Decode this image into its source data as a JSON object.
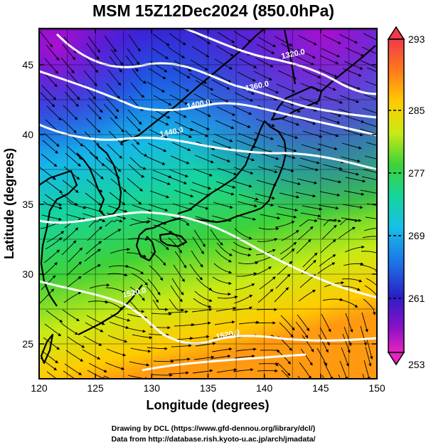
{
  "title": "MSM 15Z12Dec2024 (850.0hPa)",
  "x_axis": {
    "label": "Longitude (degrees)",
    "range": [
      120,
      150
    ],
    "ticks": [
      "120",
      "125",
      "130",
      "135",
      "140",
      "145",
      "150"
    ]
  },
  "y_axis": {
    "label": "Latitude  (degrees)",
    "range": [
      22.5,
      47.6
    ],
    "ticks": [
      "25",
      "30",
      "35",
      "40",
      "45"
    ]
  },
  "colorbar": {
    "ticks": [
      "293",
      "285",
      "277",
      "269",
      "261",
      "253"
    ],
    "colors": [
      "#f1394a",
      "#ff7a1a",
      "#ffcc00",
      "#c8ea15",
      "#3dd23a",
      "#16d59a",
      "#16c0e8",
      "#1d6fe6",
      "#2a1fc8",
      "#8a10c8",
      "#e822c0"
    ]
  },
  "contours": [
    {
      "label": "1320.0",
      "lon": 142.6,
      "lat": 45.6
    },
    {
      "label": "1360.0",
      "lon": 139.4,
      "lat": 43.3
    },
    {
      "label": "1400.0",
      "lon": 134.2,
      "lat": 42.0
    },
    {
      "label": "1440.0",
      "lon": 131.8,
      "lat": 40.0
    },
    {
      "label": "1520.0",
      "lon": 128.5,
      "lat": 28.5
    },
    {
      "label": "1520.0",
      "lon": 136.8,
      "lat": 25.5
    }
  ],
  "credits": {
    "line1": "Drawing by DCL (https://www.gfd-dennou.org/library/dcl/)",
    "line2": "Data from http://database.rish.kyoto-u.ac.jp/arch/jmadata/"
  }
}
